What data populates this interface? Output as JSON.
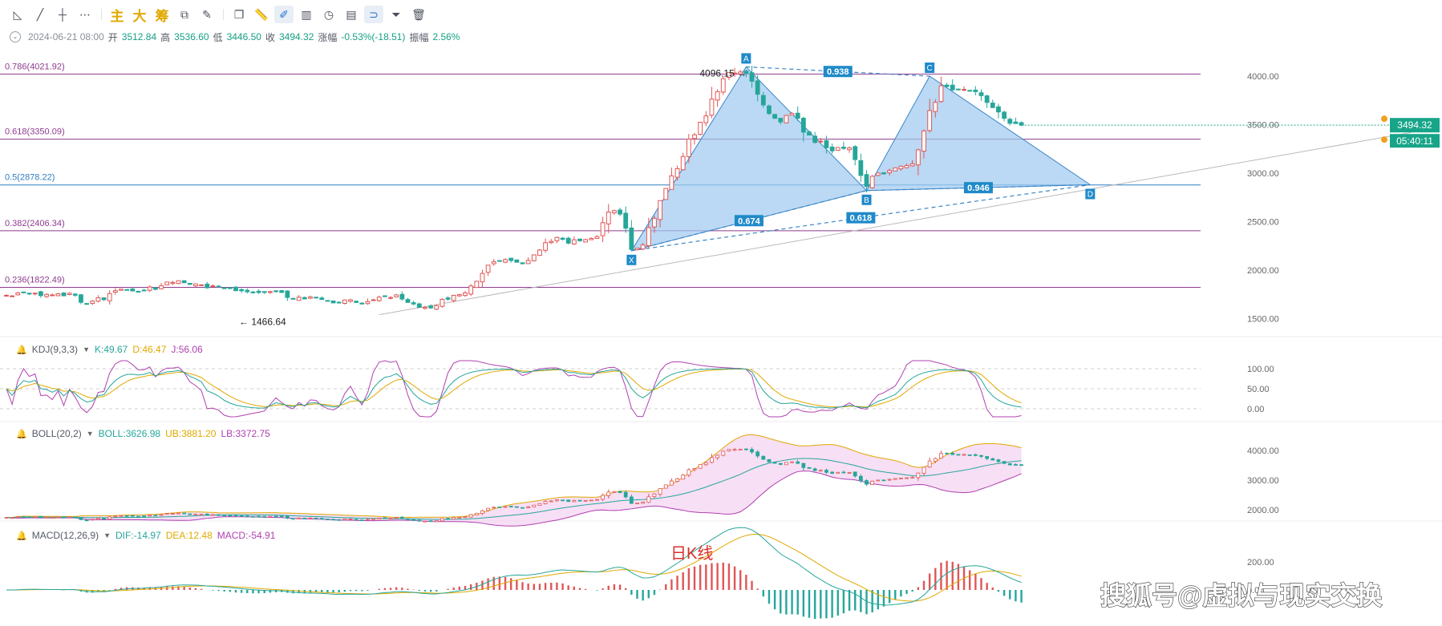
{
  "toolbar": {
    "labels": {
      "main": "主",
      "big": "大",
      "chip": "筹"
    },
    "icons": [
      "trendline-angle-icon",
      "line-icon",
      "horizontal-line-icon",
      "more-dots-icon",
      "copy-icon",
      "ruler-icon",
      "draw-mode-icon",
      "chart-type-icon",
      "clock-icon",
      "note-icon",
      "magnet-icon",
      "filter-icon",
      "delete-icon"
    ]
  },
  "ohlc": {
    "datetime": "2024-06-21 08:00",
    "open_label": "开",
    "open": "3512.84",
    "high_label": "高",
    "high": "3536.60",
    "low_label": "低",
    "low": "3446.50",
    "close_label": "收",
    "close": "3494.32",
    "change_label": "涨幅",
    "change": "-0.53%(-18.51)",
    "amplitude_label": "振幅",
    "amplitude": "2.56%"
  },
  "kdj": {
    "name": "KDJ(9,3,3)",
    "k": "K:49.67",
    "d": "D:46.47",
    "j": "J:56.06"
  },
  "boll": {
    "name": "BOLL(20,2)",
    "mid": "BOLL:3626.98",
    "ub": "UB:3881.20",
    "lb": "LB:3372.75"
  },
  "macd": {
    "name": "MACD(12,26,9)",
    "dif": "DIF:-14.97",
    "dea": "DEA:12.48",
    "macd": "MACD:-54.91"
  },
  "annotations": {
    "daily_k": "日K线",
    "watermark": "搜狐号@虚拟与现实交换"
  },
  "price_tag": {
    "price": "3494.32",
    "countdown": "05:40:11"
  },
  "colors": {
    "up": "#e05656",
    "down": "#26a69a",
    "accent": "#1f8ac9",
    "price_tag": "#17a589",
    "fib_purple": "#8e3b8e",
    "fib_blue": "#2f7ec2",
    "pattern_fill": "#9ec9f0"
  },
  "chart_data": {
    "type": "candlestick",
    "price_axis": {
      "ticks": [
        "4000.00",
        "3500.00",
        "3000.00",
        "2500.00",
        "2000.00",
        "1500.00"
      ],
      "range": [
        1300,
        4300
      ]
    },
    "fib_levels": [
      {
        "label": "0.786(4021.92)",
        "value": 4021.92
      },
      {
        "label": "0.618(3350.09)",
        "value": 3350.09
      },
      {
        "label": "0.5(2878.22)",
        "value": 2878.22
      },
      {
        "label": "0.382(2406.34)",
        "value": 2406.34
      },
      {
        "label": "0.236(1822.49)",
        "value": 1822.49
      }
    ],
    "price_labels": {
      "high": "4096.15",
      "low": "1466.64"
    },
    "harmonic_pattern": {
      "points": [
        {
          "label": "X",
          "index": 109,
          "value": 2200
        },
        {
          "label": "A",
          "index": 129,
          "value": 4096
        },
        {
          "label": "B",
          "index": 150,
          "value": 2820
        },
        {
          "label": "C",
          "index": 161,
          "value": 4000
        },
        {
          "label": "D",
          "index": 189,
          "value": 2880
        }
      ],
      "ratios": [
        "0.674",
        "0.938",
        "0.618",
        "0.946"
      ]
    },
    "closes": [
      1740,
      1734,
      1766,
      1770,
      1755,
      1763,
      1737,
      1750,
      1744,
      1756,
      1735,
      1761,
      1741,
      1668,
      1652,
      1680,
      1716,
      1695,
      1758,
      1788,
      1804,
      1799,
      1785,
      1779,
      1793,
      1826,
      1802,
      1838,
      1877,
      1873,
      1891,
      1870,
      1853,
      1858,
      1848,
      1818,
      1838,
      1830,
      1815,
      1812,
      1788,
      1787,
      1777,
      1770,
      1769,
      1770,
      1778,
      1782,
      1770,
      1718,
      1702,
      1721,
      1703,
      1724,
      1715,
      1697,
      1682,
      1662,
      1669,
      1692,
      1694,
      1667,
      1651,
      1675,
      1694,
      1721,
      1727,
      1717,
      1744,
      1702,
      1667,
      1651,
      1616,
      1617,
      1610,
      1634,
      1699,
      1700,
      1740,
      1747,
      1765,
      1836,
      1885,
      1966,
      2051,
      2086,
      2095,
      2109,
      2099,
      2081,
      2066,
      2100,
      2157,
      2207,
      2283,
      2296,
      2337,
      2318,
      2278,
      2313,
      2303,
      2315,
      2327,
      2346,
      2489,
      2599,
      2614,
      2578,
      2432,
      2213,
      2226,
      2259,
      2438,
      2534,
      2717,
      2842,
      2972,
      3046,
      3171,
      3351,
      3395,
      3525,
      3590,
      3763,
      3840,
      3974,
      4036,
      4032,
      4043,
      4028,
      3948,
      3813,
      3703,
      3615,
      3566,
      3528,
      3595,
      3615,
      3566,
      3423,
      3393,
      3317,
      3330,
      3262,
      3229,
      3264,
      3255,
      3261,
      3140,
      2976,
      2861,
      2967,
      3001,
      2992,
      3027,
      3054,
      3071,
      3078,
      3096,
      3240,
      3435,
      3645,
      3730,
      3901,
      3893,
      3859,
      3863,
      3864,
      3850,
      3840,
      3799,
      3729,
      3676,
      3631,
      3565,
      3514,
      3511,
      3494
    ],
    "kdj_range": [
      -20,
      120
    ],
    "kdj_ticks": [
      "100.00",
      "50.00",
      "0.00"
    ],
    "boll_ticks": [
      "4000.00",
      "3000.00",
      "2000.00"
    ],
    "macd_ticks": [
      "200.00",
      "0.00"
    ]
  }
}
